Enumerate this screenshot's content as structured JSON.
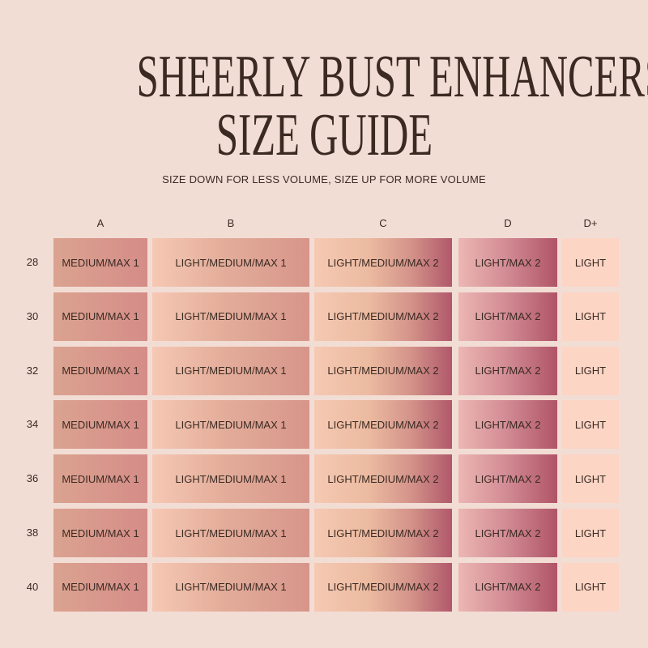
{
  "title_line1": "SHEERLY BUST ENHANCERS",
  "title_line2": "SIZE GUIDE",
  "subtitle": "SIZE DOWN FOR LESS VOLUME, SIZE UP FOR MORE VOLUME",
  "columns": [
    "A",
    "B",
    "C",
    "D",
    "D+"
  ],
  "rows": [
    {
      "band": "28",
      "cells": [
        "MEDIUM/MAX 1",
        "LIGHT/MEDIUM/MAX 1",
        "LIGHT/MEDIUM/MAX 2",
        "LIGHT/MAX 2",
        "LIGHT"
      ]
    },
    {
      "band": "30",
      "cells": [
        "MEDIUM/MAX 1",
        "LIGHT/MEDIUM/MAX 1",
        "LIGHT/MEDIUM/MAX 2",
        "LIGHT/MAX 2",
        "LIGHT"
      ]
    },
    {
      "band": "32",
      "cells": [
        "MEDIUM/MAX 1",
        "LIGHT/MEDIUM/MAX 1",
        "LIGHT/MEDIUM/MAX 2",
        "LIGHT/MAX 2",
        "LIGHT"
      ]
    },
    {
      "band": "34",
      "cells": [
        "MEDIUM/MAX 1",
        "LIGHT/MEDIUM/MAX 1",
        "LIGHT/MEDIUM/MAX 2",
        "LIGHT/MAX 2",
        "LIGHT"
      ]
    },
    {
      "band": "36",
      "cells": [
        "MEDIUM/MAX 1",
        "LIGHT/MEDIUM/MAX 1",
        "LIGHT/MEDIUM/MAX 2",
        "LIGHT/MAX 2",
        "LIGHT"
      ]
    },
    {
      "band": "38",
      "cells": [
        "MEDIUM/MAX 1",
        "LIGHT/MEDIUM/MAX 1",
        "LIGHT/MEDIUM/MAX 2",
        "LIGHT/MAX 2",
        "LIGHT"
      ]
    },
    {
      "band": "40",
      "cells": [
        "MEDIUM/MAX 1",
        "LIGHT/MEDIUM/MAX 1",
        "LIGHT/MEDIUM/MAX 2",
        "LIGHT/MAX 2",
        "LIGHT"
      ]
    }
  ],
  "colors": {
    "background": "#f2ddd5",
    "text": "#3b2a21",
    "d_plus_cell": "#fcd5c5",
    "deep_accent": "#b05468"
  }
}
